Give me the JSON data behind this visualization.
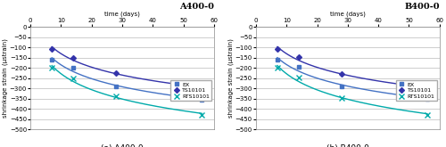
{
  "panels": [
    {
      "title": "A400-0",
      "subtitle": "(a) A400-0",
      "series": [
        {
          "label": "EX",
          "x": [
            7,
            14,
            28,
            56
          ],
          "y": [
            -160,
            -200,
            -290,
            -355
          ],
          "color": "#4472C4",
          "marker": "s",
          "markersize": 3,
          "linewidth": 1.0,
          "zorder": 3
        },
        {
          "label": "TS10101",
          "x": [
            7,
            14,
            28,
            56
          ],
          "y": [
            -105,
            -150,
            -225,
            -300
          ],
          "color": "#3333AA",
          "marker": "D",
          "markersize": 3,
          "linewidth": 1.0,
          "zorder": 3
        },
        {
          "label": "RTS10101",
          "x": [
            7,
            14,
            28,
            56
          ],
          "y": [
            -200,
            -250,
            -340,
            -430
          ],
          "color": "#00AAAA",
          "marker": "x",
          "markersize": 4,
          "linewidth": 1.0,
          "zorder": 3
        }
      ],
      "xlim": [
        0,
        60
      ],
      "ylim": [
        -500,
        0
      ],
      "xticks": [
        0,
        10,
        20,
        30,
        40,
        50,
        60
      ],
      "yticks": [
        0,
        -50,
        -100,
        -150,
        -200,
        -250,
        -300,
        -350,
        -400,
        -450,
        -500
      ],
      "xlabel": "time (days)",
      "ylabel": "shrinkage strain (µstrain)"
    },
    {
      "title": "B400-0",
      "subtitle": "(b) B400-0",
      "series": [
        {
          "label": "EX",
          "x": [
            7,
            14,
            28,
            56
          ],
          "y": [
            -160,
            -195,
            -290,
            -350
          ],
          "color": "#4472C4",
          "marker": "s",
          "markersize": 3,
          "linewidth": 1.0,
          "zorder": 3
        },
        {
          "label": "TS10101",
          "x": [
            7,
            14,
            28,
            56
          ],
          "y": [
            -105,
            -148,
            -230,
            -300
          ],
          "color": "#3333AA",
          "marker": "D",
          "markersize": 3,
          "linewidth": 1.0,
          "zorder": 3
        },
        {
          "label": "RTS10101",
          "x": [
            7,
            14,
            28,
            56
          ],
          "y": [
            -200,
            -248,
            -345,
            -430
          ],
          "color": "#00AAAA",
          "marker": "x",
          "markersize": 4,
          "linewidth": 1.0,
          "zorder": 3
        }
      ],
      "xlim": [
        0,
        60
      ],
      "ylim": [
        -500,
        0
      ],
      "xticks": [
        0,
        10,
        20,
        30,
        40,
        50,
        60
      ],
      "yticks": [
        0,
        -50,
        -100,
        -150,
        -200,
        -250,
        -300,
        -350,
        -400,
        -450,
        -500
      ],
      "xlabel": "time (days)",
      "ylabel": "shrinkage strain (µstrain)"
    }
  ],
  "background_color": "#FFFFFF",
  "grid_color": "#BBBBBB",
  "tick_fontsize": 5,
  "label_fontsize": 5,
  "title_fontsize": 7,
  "legend_fontsize": 4.5,
  "subtitle_fontsize": 6.5
}
